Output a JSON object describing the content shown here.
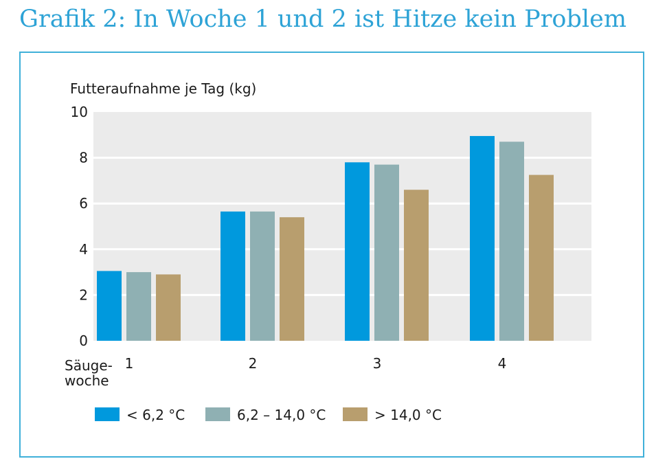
{
  "page": {
    "title": "Grafik 2: In Woche 1 und 2 ist Hitze kein Problem"
  },
  "chart_data": {
    "type": "bar",
    "title": "Grafik 2: In Woche 1 und 2 ist Hitze kein Problem",
    "ylabel": "Futteraufnahme je Tag (kg)",
    "xlabel_lines": [
      "Säuge-",
      "woche"
    ],
    "categories": [
      "1",
      "2",
      "3",
      "4"
    ],
    "yticks": [
      "0",
      "2",
      "4",
      "6",
      "8",
      "10"
    ],
    "ylim": [
      0,
      10
    ],
    "grid": true,
    "legend_position": "bottom",
    "series": [
      {
        "name": "< 6,2 °C",
        "color": "#0099dd",
        "values": [
          3.05,
          5.65,
          7.8,
          8.95
        ]
      },
      {
        "name": "6,2 – 14,0 °C",
        "color": "#8fb0b3",
        "values": [
          3.0,
          5.65,
          7.7,
          8.7
        ]
      },
      {
        "name": "> 14,0 °C",
        "color": "#b89e6e",
        "values": [
          2.9,
          5.4,
          6.6,
          7.25
        ]
      }
    ],
    "colors": {
      "plot_background": "#ebebeb",
      "gridline": "#ffffff",
      "frame": "#3fb0d9",
      "title": "#2ea3d6"
    }
  }
}
